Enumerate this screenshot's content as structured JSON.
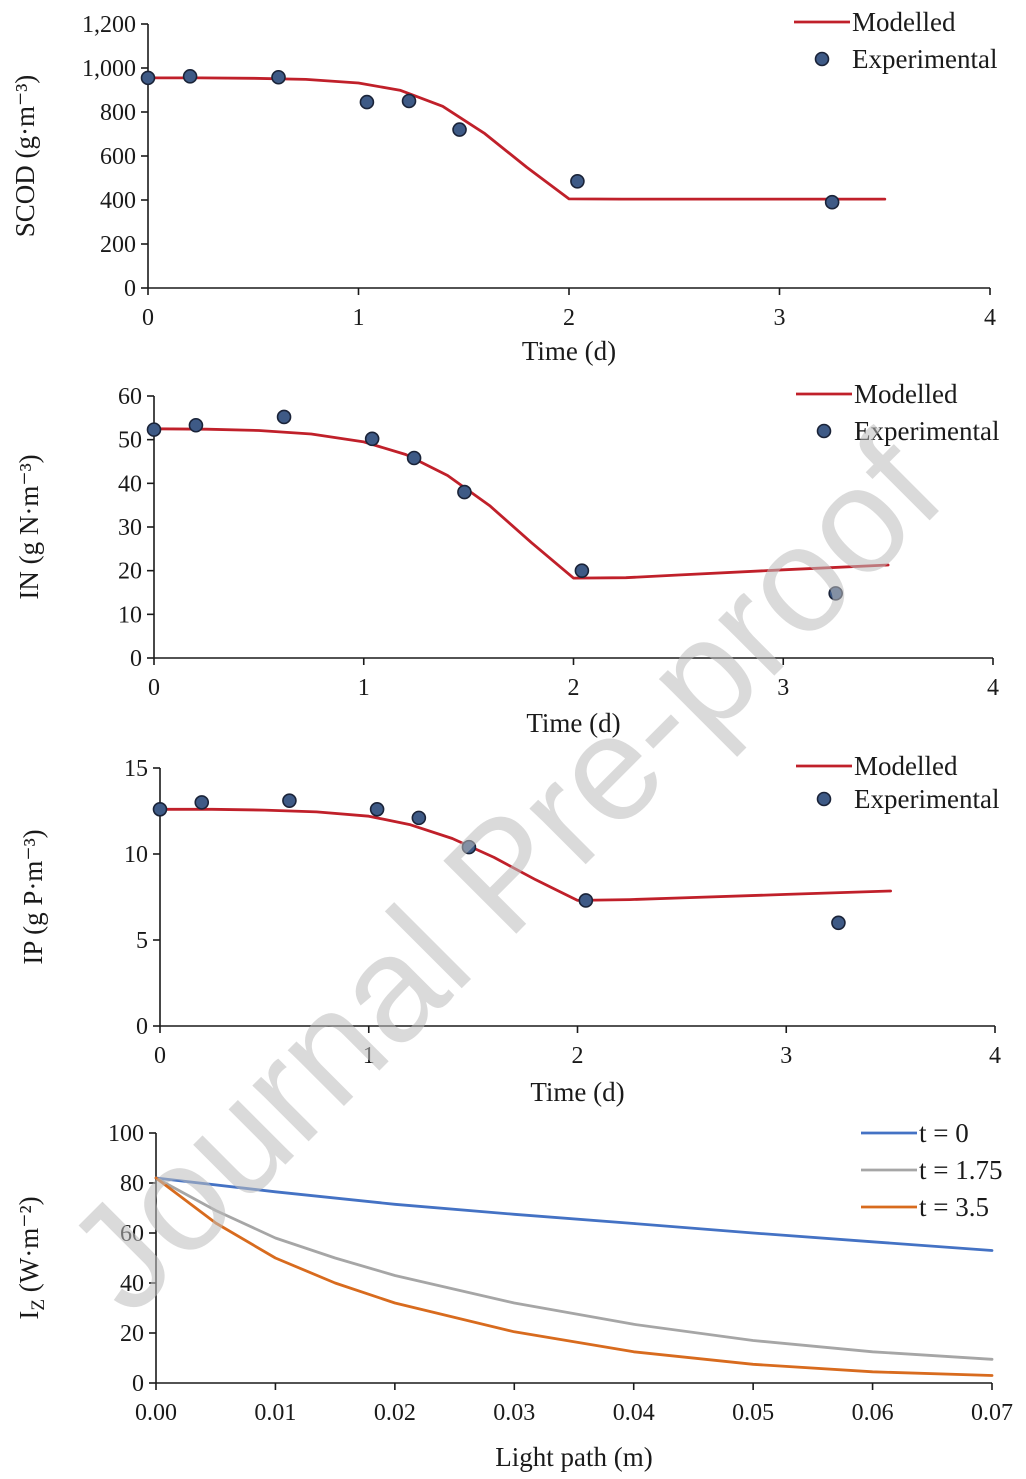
{
  "watermark": "Journal Pre-proof",
  "colors": {
    "modelled": "#c0202a",
    "marker_fill": "#3e5a86",
    "marker_edge": "#1a2338",
    "t0": "#4472c4",
    "t175": "#a6a6a6",
    "t35": "#d86b1e",
    "axis": "#1a1a1a"
  },
  "chart_data": [
    {
      "type": "line",
      "xlabel": "Time (d)",
      "ylabel": "SCOD (g·m⁻³)",
      "xlim": [
        0,
        4
      ],
      "ylim": [
        0,
        1200
      ],
      "xticks": [
        0,
        1,
        2,
        3,
        4
      ],
      "xtick_labels": [
        "0",
        "1",
        "2",
        "3",
        "4"
      ],
      "yticks": [
        0,
        200,
        400,
        600,
        800,
        1000,
        1200
      ],
      "ytick_labels": [
        "0",
        "200",
        "400",
        "600",
        "800",
        "1,000",
        "1,200"
      ],
      "legend": "top-right",
      "series": [
        {
          "name": "Modelled",
          "kind": "line",
          "color": "#c0202a",
          "x": [
            0,
            0.25,
            0.5,
            0.75,
            1.0,
            1.2,
            1.4,
            1.6,
            1.8,
            2.0,
            2.25,
            2.5,
            3.0,
            3.5
          ],
          "y": [
            955,
            955,
            953,
            948,
            932,
            898,
            826,
            702,
            548,
            405,
            404,
            404,
            404,
            404
          ]
        },
        {
          "name": "Experimental",
          "kind": "scatter",
          "x": [
            0.0,
            0.2,
            0.62,
            1.04,
            1.24,
            1.48,
            2.04,
            3.25
          ],
          "y": [
            955,
            962,
            958,
            845,
            850,
            720,
            485,
            390
          ]
        }
      ]
    },
    {
      "type": "line",
      "xlabel": "Time (d)",
      "ylabel": "IN (g N·m⁻³)",
      "xlim": [
        0,
        4
      ],
      "ylim": [
        0,
        60
      ],
      "xticks": [
        0,
        1,
        2,
        3,
        4
      ],
      "xtick_labels": [
        "0",
        "1",
        "2",
        "3",
        "4"
      ],
      "yticks": [
        0,
        10,
        20,
        30,
        40,
        50,
        60
      ],
      "ytick_labels": [
        "0",
        "10",
        "20",
        "30",
        "40",
        "50",
        "60"
      ],
      "legend": "top-right",
      "series": [
        {
          "name": "Modelled",
          "kind": "line",
          "color": "#c0202a",
          "x": [
            0,
            0.25,
            0.5,
            0.75,
            1.0,
            1.2,
            1.4,
            1.6,
            1.8,
            2.0,
            2.25,
            2.5,
            3.0,
            3.5
          ],
          "y": [
            52.5,
            52.4,
            52.1,
            51.3,
            49.5,
            46.6,
            41.8,
            34.9,
            26.4,
            18.3,
            18.4,
            19.0,
            20.2,
            21.3
          ]
        },
        {
          "name": "Experimental",
          "kind": "scatter",
          "x": [
            0.0,
            0.2,
            0.62,
            1.04,
            1.24,
            1.48,
            2.04,
            3.25
          ],
          "y": [
            52.3,
            53.3,
            55.2,
            50.2,
            45.8,
            38.0,
            20.0,
            14.8
          ]
        }
      ]
    },
    {
      "type": "line",
      "xlabel": "Time (d)",
      "ylabel": "IP (g P·m⁻³)",
      "xlim": [
        0,
        4
      ],
      "ylim": [
        0,
        15
      ],
      "xticks": [
        0,
        1,
        2,
        3,
        4
      ],
      "xtick_labels": [
        "0",
        "1",
        "2",
        "3",
        "4"
      ],
      "yticks": [
        0,
        5,
        10,
        15
      ],
      "ytick_labels": [
        "0",
        "5",
        "10",
        "15"
      ],
      "legend": "top-right",
      "series": [
        {
          "name": "Modelled",
          "kind": "line",
          "color": "#c0202a",
          "x": [
            0,
            0.25,
            0.5,
            0.75,
            1.0,
            1.2,
            1.4,
            1.6,
            1.8,
            2.0,
            2.25,
            2.5,
            3.0,
            3.5
          ],
          "y": [
            12.6,
            12.6,
            12.55,
            12.45,
            12.2,
            11.7,
            10.9,
            9.8,
            8.5,
            7.3,
            7.35,
            7.45,
            7.65,
            7.85
          ]
        },
        {
          "name": "Experimental",
          "kind": "scatter",
          "x": [
            0.0,
            0.2,
            0.62,
            1.04,
            1.24,
            1.48,
            2.04,
            3.25
          ],
          "y": [
            12.6,
            13.0,
            13.1,
            12.6,
            12.1,
            10.4,
            7.3,
            6.0
          ]
        }
      ]
    },
    {
      "type": "line",
      "xlabel": "Light path (m)",
      "ylabel_main": "I",
      "ylabel_sub": "Z",
      "ylabel_rest": " (W·m⁻²)",
      "xlim": [
        0,
        0.07
      ],
      "ylim": [
        0,
        100
      ],
      "xticks": [
        0,
        0.01,
        0.02,
        0.03,
        0.04,
        0.05,
        0.06,
        0.07
      ],
      "xtick_labels": [
        "0.00",
        "0.01",
        "0.02",
        "0.03",
        "0.04",
        "0.05",
        "0.06",
        "0.07"
      ],
      "yticks": [
        0,
        20,
        40,
        60,
        80,
        100
      ],
      "ytick_labels": [
        "0",
        "20",
        "40",
        "60",
        "80",
        "100"
      ],
      "legend": "top-right",
      "series": [
        {
          "name": "t = 0",
          "kind": "line",
          "color": "#4472c4",
          "x": [
            0,
            0.01,
            0.02,
            0.03,
            0.04,
            0.05,
            0.06,
            0.07
          ],
          "y": [
            82,
            76.5,
            71.5,
            67.5,
            63.8,
            60.0,
            56.5,
            53.0
          ]
        },
        {
          "name": "t = 1.75",
          "kind": "line",
          "color": "#a6a6a6",
          "x": [
            0,
            0.005,
            0.01,
            0.015,
            0.02,
            0.03,
            0.04,
            0.05,
            0.06,
            0.07
          ],
          "y": [
            82,
            69,
            58,
            50,
            43,
            32,
            23.5,
            17,
            12.5,
            9.5
          ]
        },
        {
          "name": "t = 3.5",
          "kind": "line",
          "color": "#d86b1e",
          "x": [
            0,
            0.005,
            0.01,
            0.015,
            0.02,
            0.03,
            0.04,
            0.05,
            0.06,
            0.07
          ],
          "y": [
            82,
            64,
            50,
            40,
            32,
            20.5,
            12.5,
            7.5,
            4.5,
            3.0
          ]
        }
      ]
    }
  ]
}
